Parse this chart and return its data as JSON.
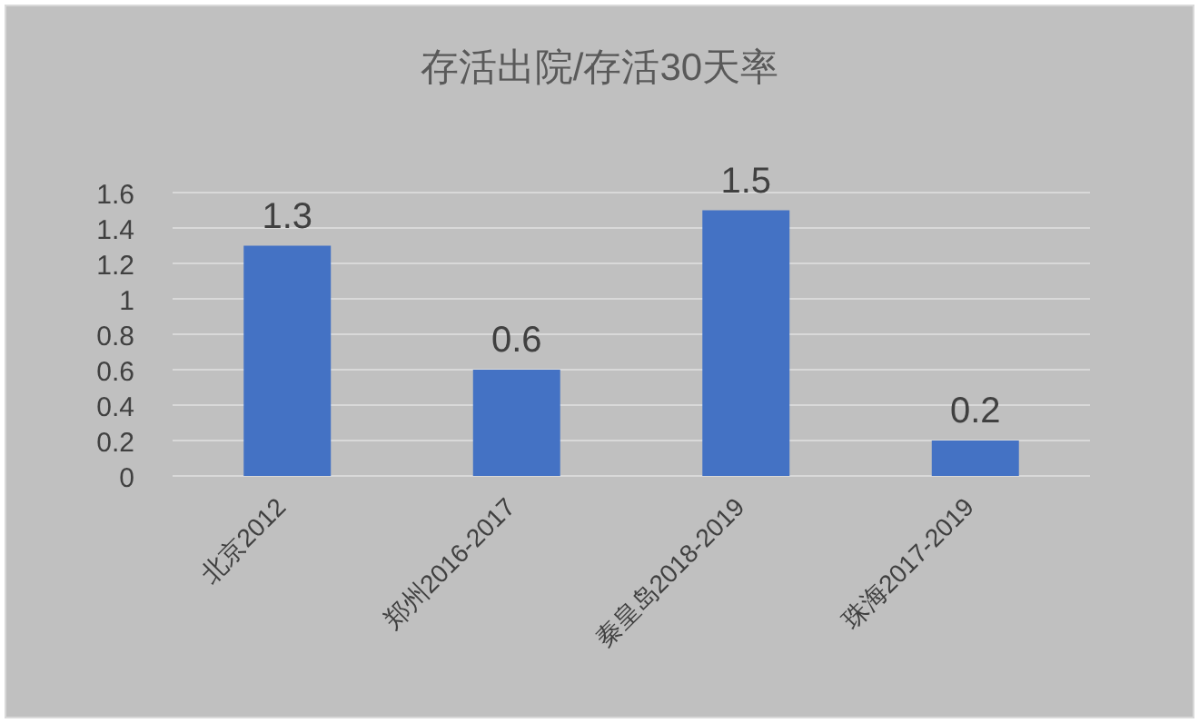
{
  "chart_data": {
    "type": "bar",
    "title": "存活出院/存活30天率",
    "categories": [
      "北京2012",
      "郑州2016-2017",
      "秦皇岛2018-2019",
      "珠海2017-2019"
    ],
    "values": [
      1.3,
      0.6,
      1.5,
      0.2
    ],
    "color": "#4472c4",
    "ylim": [
      0,
      1.6
    ],
    "yticks": [
      0,
      0.2,
      0.4,
      0.6,
      0.8,
      1,
      1.2,
      1.4,
      1.6
    ],
    "grid": "y",
    "data_labels": true
  }
}
